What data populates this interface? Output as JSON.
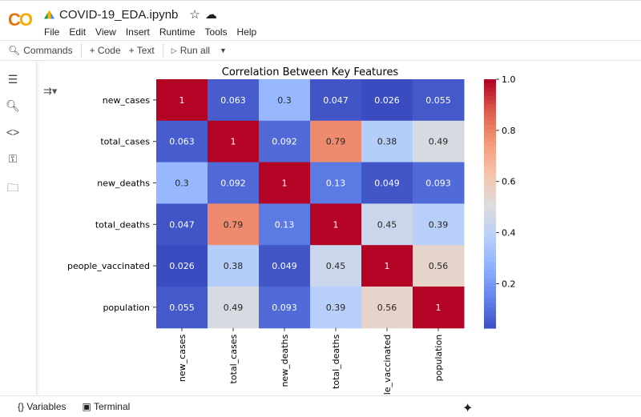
{
  "app": {
    "logo": "CO",
    "title": "COVID-19_EDA.ipynb",
    "menu": [
      "File",
      "Edit",
      "View",
      "Insert",
      "Runtime",
      "Tools",
      "Help"
    ]
  },
  "toolbar": {
    "commands": "Commands",
    "code": "+ Code",
    "text": "+ Text",
    "run_all": "Run all"
  },
  "sidebar": {
    "icons": [
      "toc-icon",
      "find-icon",
      "code-snippets-icon",
      "secrets-key-icon",
      "folder-icon"
    ]
  },
  "bottom": {
    "variables": "Variables",
    "terminal": "Terminal"
  },
  "chart_data": {
    "type": "heatmap",
    "title": "Correlation Between Key Features",
    "colormap": "coolwarm",
    "labels": [
      "new_cases",
      "total_cases",
      "new_deaths",
      "total_deaths",
      "people_vaccinated",
      "population"
    ],
    "values": [
      [
        1,
        0.063,
        0.3,
        0.047,
        0.026,
        0.055
      ],
      [
        0.063,
        1,
        0.092,
        0.79,
        0.38,
        0.49
      ],
      [
        0.3,
        0.092,
        1,
        0.13,
        0.049,
        0.093
      ],
      [
        0.047,
        0.79,
        0.13,
        1,
        0.45,
        0.39
      ],
      [
        0.026,
        0.38,
        0.049,
        0.45,
        1,
        0.56
      ],
      [
        0.055,
        0.49,
        0.093,
        0.39,
        0.56,
        1
      ]
    ],
    "colorbar_ticks": [
      "1.0",
      "0.8",
      "0.6",
      "0.4",
      "0.2"
    ],
    "vmin": 0.026,
    "vmax": 1
  }
}
